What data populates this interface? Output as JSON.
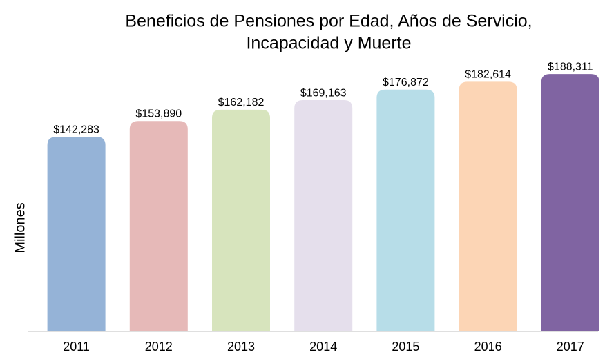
{
  "chart_data": {
    "type": "bar",
    "title": [
      "Beneficios de Pensiones por Edad, Años de Servicio,",
      "Incapacidad y Muerte"
    ],
    "ylabel": "Millones",
    "categories": [
      "2011",
      "2012",
      "2013",
      "2014",
      "2015",
      "2016",
      "2017"
    ],
    "values": [
      142283,
      153890,
      162182,
      169163,
      176872,
      182614,
      188311
    ],
    "value_labels": [
      "$142,283",
      "$153,890",
      "$162,182",
      "$169,163",
      "$176,872",
      "$182,614",
      "$188,311"
    ],
    "colors": [
      "#95b3d7",
      "#e6b9b8",
      "#d7e4bd",
      "#e5dfec",
      "#b7dde8",
      "#fcd5b5",
      "#8064a2"
    ],
    "ylim": [
      0,
      200000
    ]
  }
}
